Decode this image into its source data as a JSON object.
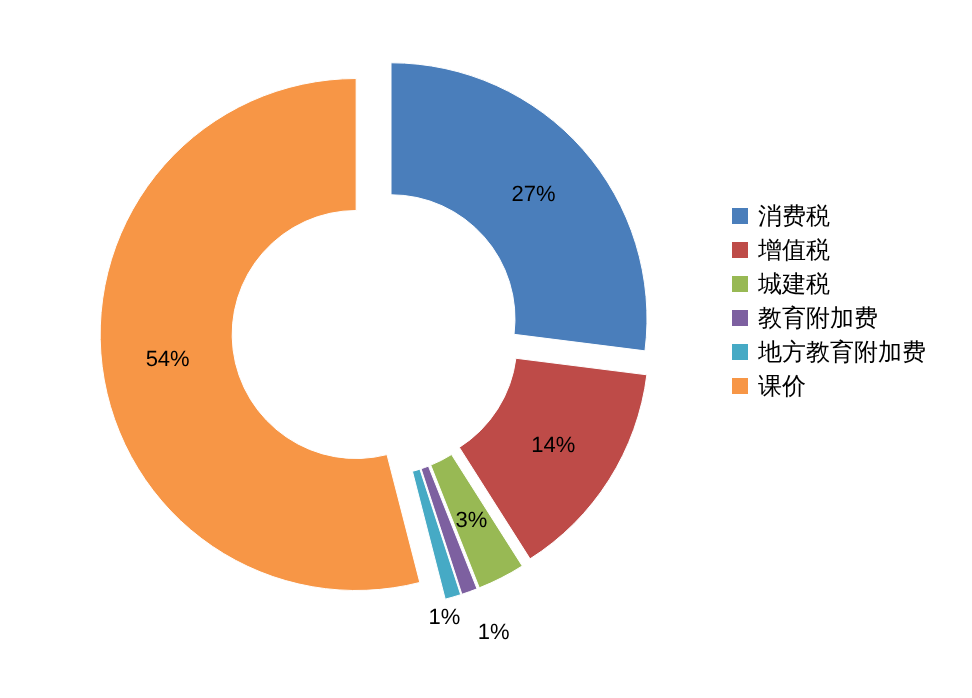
{
  "chart_data": {
    "type": "donut",
    "categories": [
      "消费税",
      "增值税",
      "城建税",
      "教育附加费",
      "地方教育附加费",
      "课价"
    ],
    "values": [
      27,
      14,
      3,
      1,
      1,
      54
    ],
    "colors": [
      "#4a7ebb",
      "#be4b48",
      "#98b954",
      "#7d60a0",
      "#46aac5",
      "#f79646"
    ],
    "value_labels": [
      "27%",
      "14%",
      "3%",
      "1%",
      "1%",
      "54%"
    ],
    "legend": "right"
  }
}
